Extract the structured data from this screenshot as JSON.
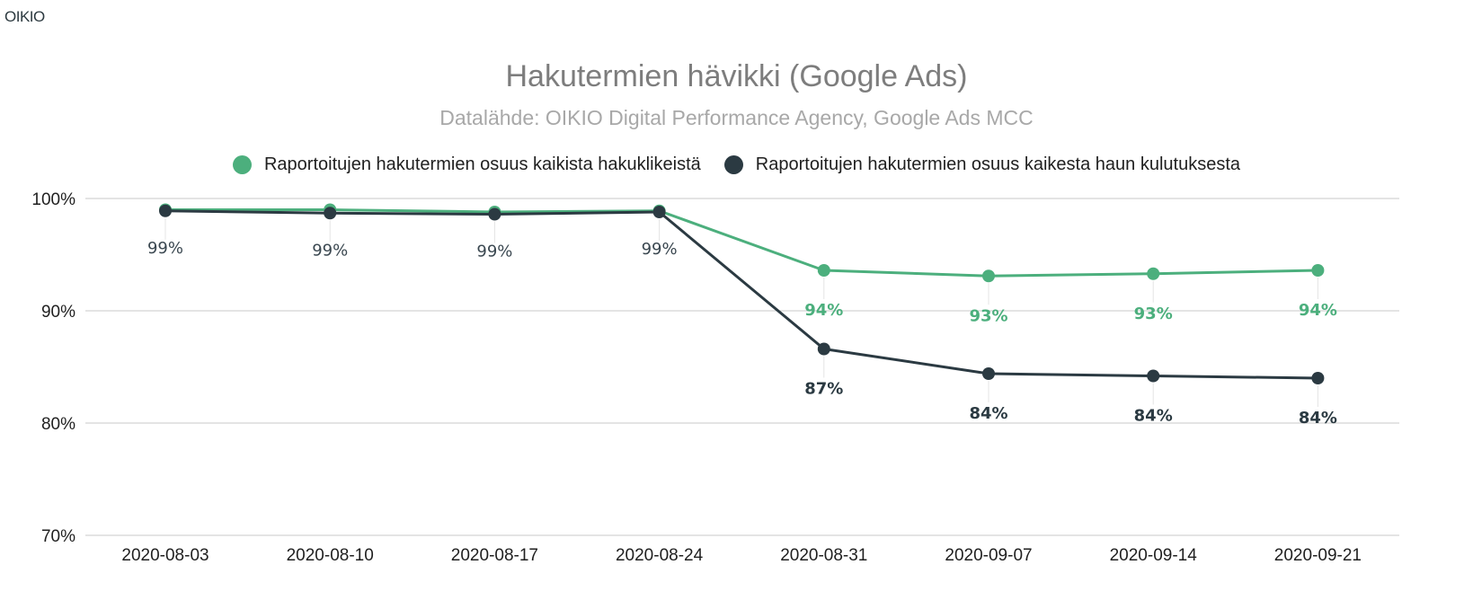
{
  "brand": "OIKIO",
  "chart_data": {
    "type": "line",
    "title": "Hakutermien hävikki (Google Ads)",
    "subtitle": "Datalähde: OIKIO Digital Performance Agency, Google Ads MCC",
    "categories": [
      "2020-08-03",
      "2020-08-10",
      "2020-08-17",
      "2020-08-24",
      "2020-08-31",
      "2020-09-07",
      "2020-09-14",
      "2020-09-21"
    ],
    "series": [
      {
        "name": "Raportoitujen hakutermien osuus kaikista hakuklikeistä",
        "color": "#4caf7d",
        "values": [
          99.0,
          99.0,
          98.8,
          98.9,
          93.6,
          93.1,
          93.3,
          93.6
        ],
        "labels": [
          "",
          "",
          "",
          "",
          "94%",
          "93%",
          "93%",
          "94%"
        ]
      },
      {
        "name": "Raportoitujen hakutermien osuus kaikesta haun kulutuksesta",
        "color": "#2b3a42",
        "values": [
          98.9,
          98.7,
          98.6,
          98.8,
          86.6,
          84.4,
          84.2,
          84.0
        ],
        "labels": [
          "99%",
          "99%",
          "99%",
          "99%",
          "87%",
          "84%",
          "84%",
          "84%"
        ]
      }
    ],
    "y_ticks": [
      "100%",
      "90%",
      "80%",
      "70%"
    ],
    "y_tick_values": [
      100,
      90,
      80,
      70
    ],
    "ylim": [
      70,
      100
    ],
    "grid": true,
    "legend_position": "top-center"
  }
}
